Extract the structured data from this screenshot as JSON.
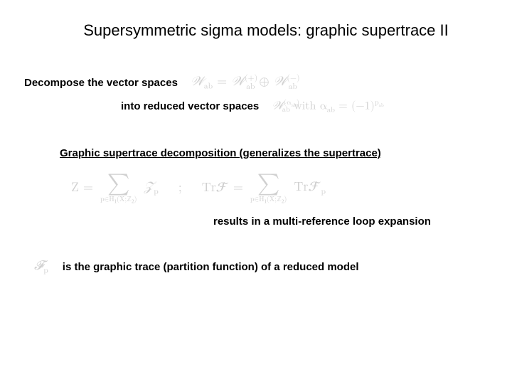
{
  "title": "Supersymmetric sigma models: graphic supertrace II",
  "decompose": {
    "label": "Decompose the vector spaces",
    "eq_lhs": "𝒲",
    "eq_sub": "ab",
    "eq_eq": " = ",
    "eq_r1": "𝒲",
    "eq_r1_sup": "(+)",
    "eq_r1_sub": "ab",
    "eq_oplus": " ⊕ ",
    "eq_r2": "𝒲",
    "eq_r2_sup": "(−)",
    "eq_r2_sub": "ab"
  },
  "reduced": {
    "label": "into reduced vector spaces",
    "eq_lhs": "𝒲",
    "eq_lhs_sup": "(α",
    "eq_lhs_sup2": "ab",
    "eq_lhs_sup3": ")",
    "eq_lhs_sub": "ab",
    "with": "  with  ",
    "alpha": "α",
    "alpha_sub": "ab",
    "eq": " = (−1)",
    "exp": "p",
    "exp_sub": "ab"
  },
  "heading": "Graphic supertrace decomposition (generalizes the supertrace)",
  "equation": {
    "Z": "Z = ",
    "sum_below": "p∈H₁(X;ℤ₂)",
    "Zp": "𝒵",
    "Zp_sub": "p",
    "sep": ";",
    "TrF": "Tr𝓕 = ",
    "TrFp": "Tr𝓕",
    "TrFp_sub": "p"
  },
  "results": "results in a multi-reference loop expansion",
  "final": {
    "Fp": "𝓕",
    "Fp_sub": "p",
    "label": "is the graphic trace (partition function) of a reduced model"
  },
  "colors": {
    "text": "#000000",
    "math_gray": "#d0d0d0",
    "background": "#ffffff"
  },
  "fonts": {
    "body": "Arial",
    "math": "Cambria Math / STIX"
  },
  "title_fontsize": 22,
  "label_fontsize": 15,
  "math_fontsize": 18
}
